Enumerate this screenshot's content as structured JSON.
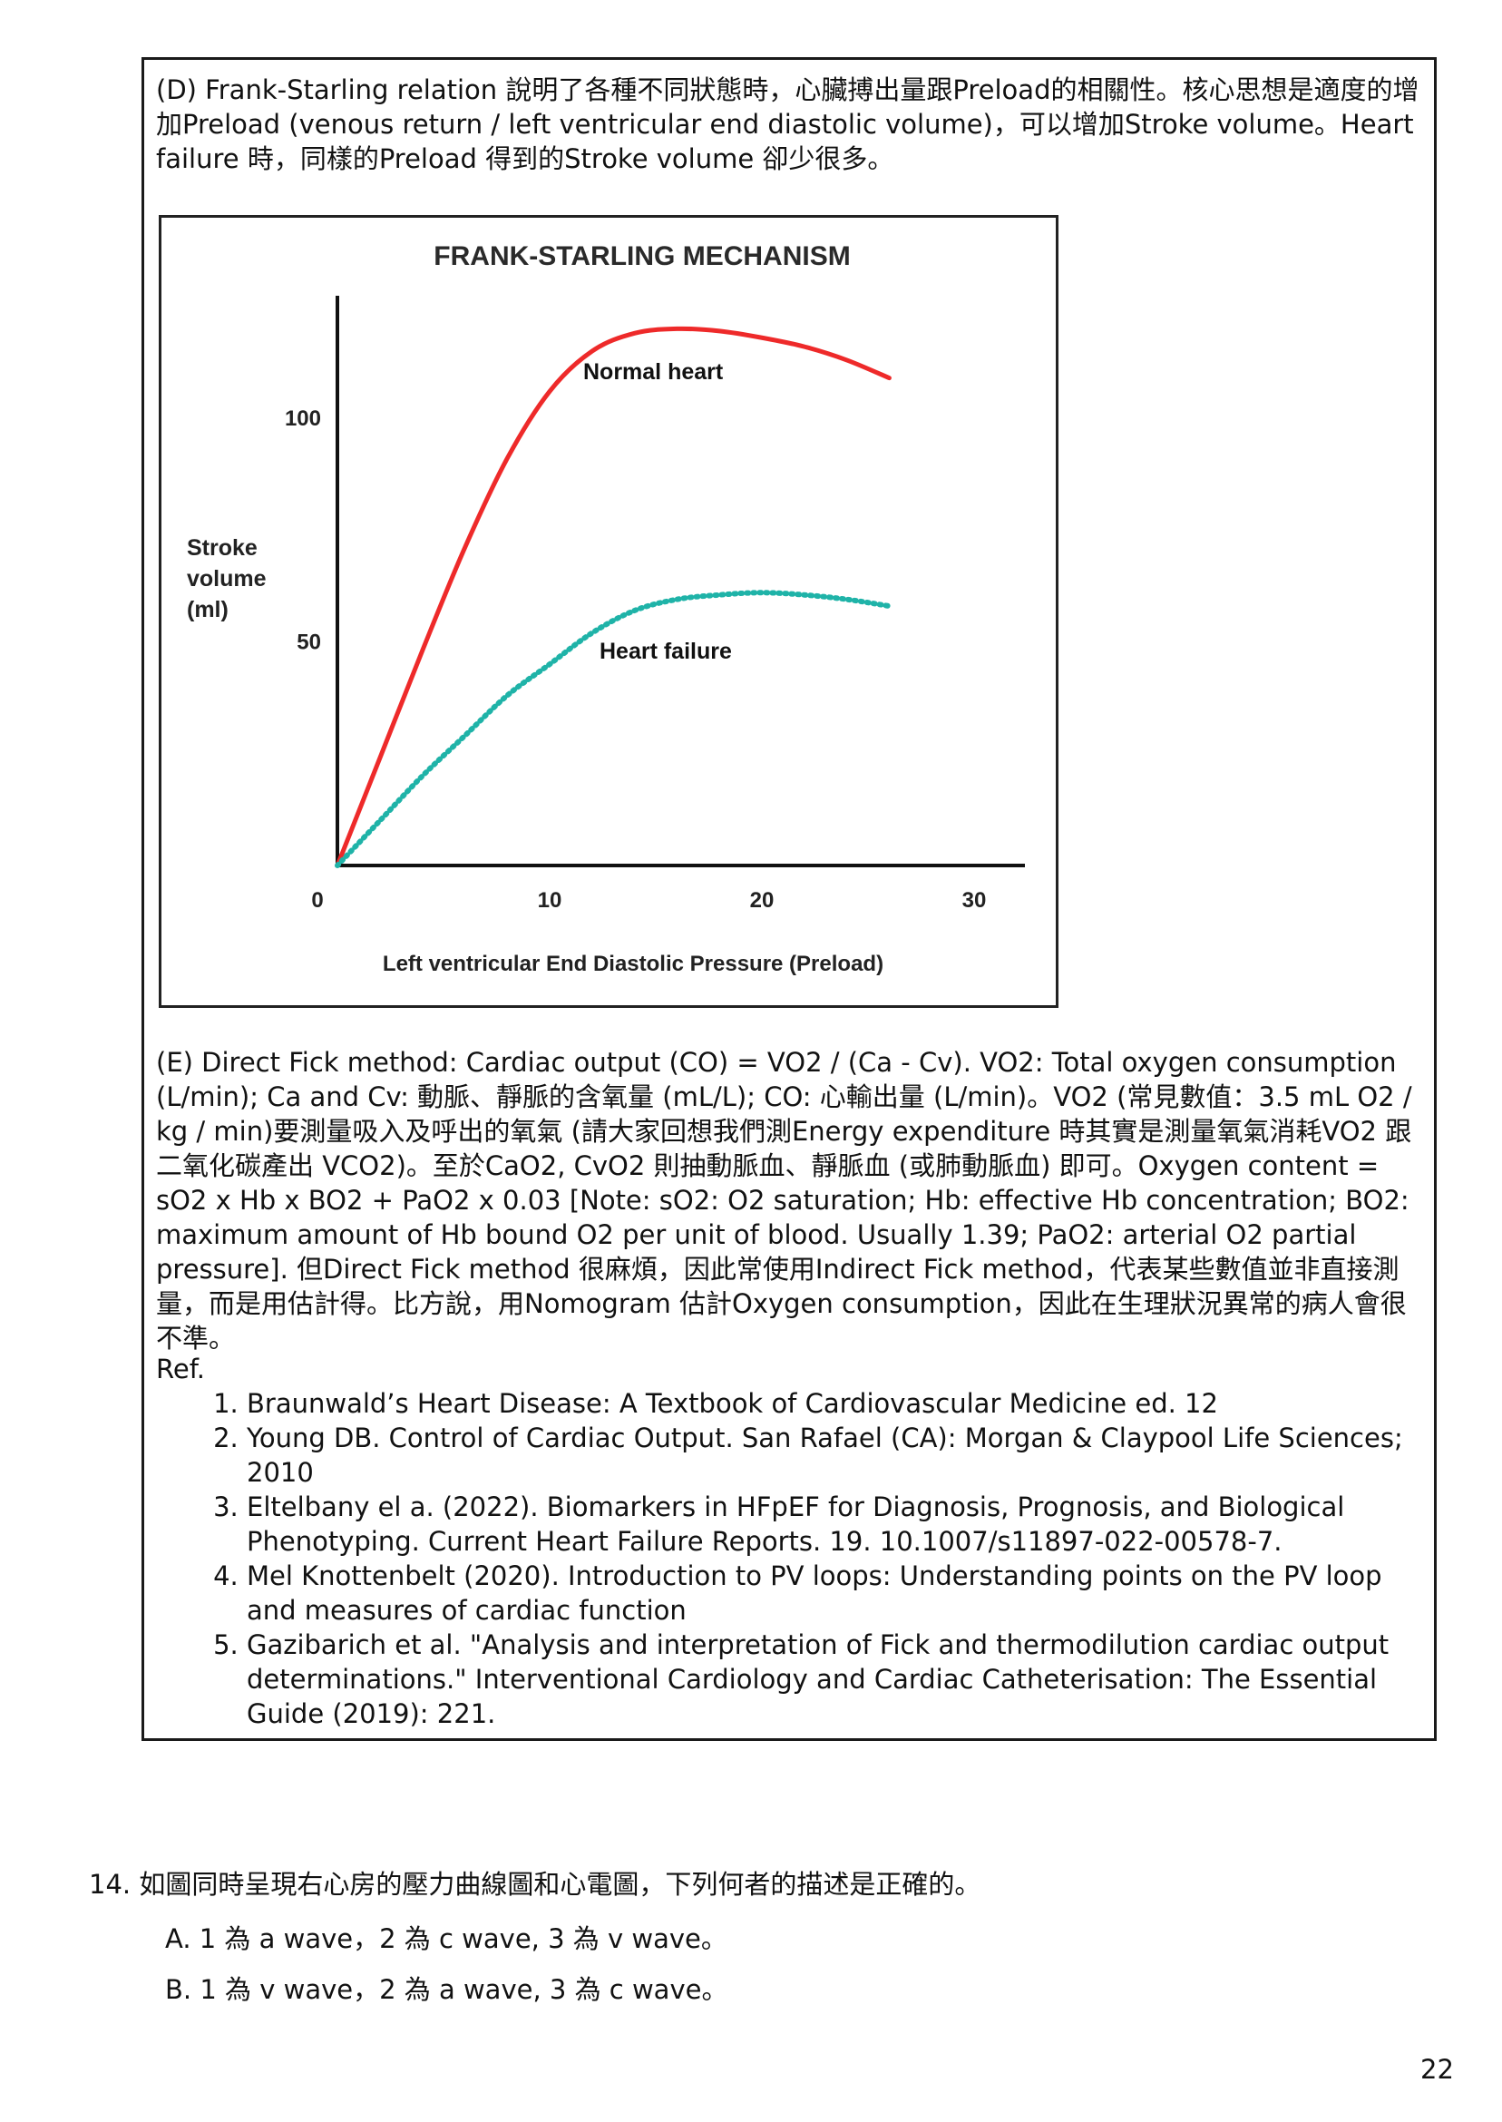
{
  "note_box": {
    "para_d": "(D) Frank-Starling relation 說明了各種不同狀態時，心臟搏出量跟Preload的相關性。核心思想是適度的增加Preload (venous return / left ventricular end diastolic volume)，可以增加Stroke volume。Heart failure 時，同樣的Preload 得到的Stroke volume 卻少很多。",
    "para_e": "(E) Direct Fick method: Cardiac output (CO) = VO2 / (Ca - Cv). VO2: Total oxygen consumption (L/min); Ca and Cv: 動脈、靜脈的含氧量 (mL/L); CO: 心輸出量 (L/min)。VO2 (常見數值：3.5 mL O2 / kg / min)要測量吸入及呼出的氧氣 (請大家回想我們測Energy expenditure 時其實是測量氧氣消耗VO2 跟二氧化碳產出 VCO2)。至於CaO2, CvO2 則抽動脈血、靜脈血 (或肺動脈血) 即可。Oxygen content = sO2 x Hb x BO2 + PaO2 x 0.03 [Note: sO2: O2 saturation; Hb: effective Hb concentration; BO2: maximum amount of Hb bound O2 per unit of blood. Usually 1.39; PaO2: arterial O2 partial pressure]. 但Direct Fick method 很麻煩，因此常使用Indirect Fick method，代表某些數值並非直接測量，而是用估計得。比方說，用Nomogram 估計Oxygen consumption，因此在生理狀況異常的病人會很不準。",
    "ref_heading": "Ref.",
    "refs": [
      "Braunwald’s Heart Disease: A Textbook of Cardiovascular Medicine ed. 12",
      "Young DB. Control of Cardiac Output. San Rafael (CA): Morgan & Claypool Life Sciences; 2010",
      "Eltelbany el a. (2022). Biomarkers in HFpEF for Diagnosis, Prognosis, and Biological Phenotyping. Current Heart Failure Reports. 19. 10.1007/s11897-022-00578-7.",
      "Mel Knottenbelt (2020). Introduction to PV loops: Understanding points on the PV loop and measures of cardiac function",
      "Gazibarich et al. \"Analysis and interpretation of Fick and thermodilution cardiac output determinations.\" Interventional Cardiology and Cardiac Catheterisation: The Essential Guide (2019): 221."
    ]
  },
  "chart_data": {
    "type": "line",
    "title": "FRANK-STARLING MECHANISM",
    "xlabel": "Left ventricular End Diastolic Pressure (Preload)",
    "ylabel": "Stroke volume (ml)",
    "xlim": [
      0,
      35
    ],
    "ylim": [
      0,
      125
    ],
    "xticks": [
      0,
      10,
      20,
      30
    ],
    "yticks": [
      50,
      100
    ],
    "grid": false,
    "series": [
      {
        "name": "Normal heart",
        "color": "#ee2a2a",
        "style": "solid",
        "x": [
          0,
          2,
          4,
          6,
          8,
          10,
          12,
          14,
          16,
          18,
          20,
          22,
          24,
          26
        ],
        "y": [
          0,
          24,
          48,
          71,
          91,
          106,
          115,
          119,
          120,
          119.5,
          118,
          116,
          113,
          109
        ]
      },
      {
        "name": "Heart failure",
        "color": "#1fb3a8",
        "style": "dotted",
        "x": [
          0,
          2,
          4,
          6,
          8,
          10,
          12,
          14,
          16,
          18,
          20,
          22,
          24,
          26
        ],
        "y": [
          0,
          10,
          20,
          29,
          38,
          45,
          52,
          57,
          59.5,
          60.5,
          61,
          60.5,
          59.5,
          58
        ]
      }
    ]
  },
  "question": {
    "stem": "14. 如圖同時呈現右心房的壓力曲線圖和心電圖，下列何者的描述是正確的。",
    "options": [
      "A. 1 為 a wave，2 為 c wave, 3 為 v wave。",
      "B. 1 為 v wave，2 為 a wave, 3 為 c wave。"
    ]
  },
  "page_number": "22"
}
